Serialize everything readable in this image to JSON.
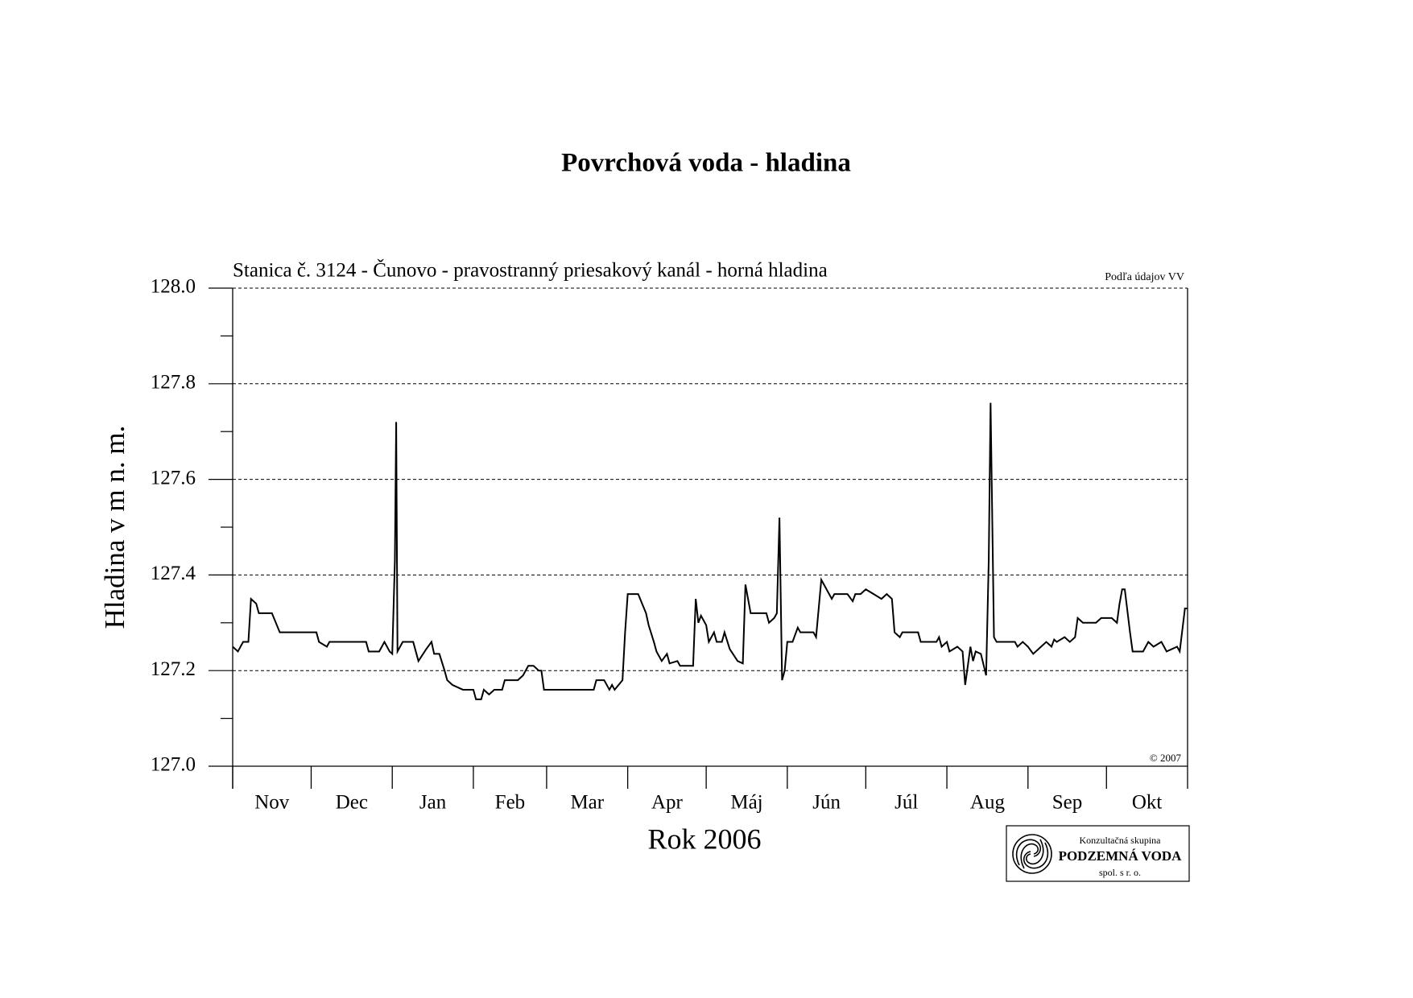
{
  "chart_data": {
    "type": "line",
    "title": "Povrchová voda - hladina",
    "subtitle": "Stanica č. 3124 - Čunovo - pravostranný priesakový kanál - horná hladina",
    "source_note": "Podľa údajov VV",
    "copyright": "© 2007",
    "x_label": "Rok 2006",
    "y_label": "Hladina v m n. m.",
    "categories": [
      "Nov",
      "Dec",
      "Jan",
      "Feb",
      "Mar",
      "Apr",
      "Máj",
      "Jún",
      "Júl",
      "Aug",
      "Sep",
      "Okt"
    ],
    "xlim": [
      0,
      365
    ],
    "xticks": [
      0,
      30,
      61,
      92,
      120,
      151,
      181,
      212,
      242,
      273,
      304,
      334,
      365
    ],
    "ylim": [
      127.0,
      128.0
    ],
    "yticks": [
      {
        "value": 127.0,
        "label": "127.0"
      },
      127.2,
      127.4,
      127.6,
      127.8,
      {
        "value": 128.0,
        "label": "128.0"
      }
    ],
    "yminor_ticks": [
      127.1,
      127.3,
      127.5,
      127.7,
      127.9
    ],
    "grid": true,
    "series": [
      {
        "name": "Hladina",
        "color": "#000000",
        "x": [
          0,
          2,
          4,
          6,
          7,
          9,
          10,
          15,
          18,
          32,
          33,
          36,
          37,
          51,
          52,
          56,
          58,
          60,
          61,
          62,
          62.5,
          63,
          65,
          69,
          71,
          74,
          76,
          77,
          79,
          81,
          82,
          84,
          88,
          92,
          93,
          95,
          96,
          98,
          100,
          103,
          104,
          109,
          111,
          113,
          115,
          117,
          118,
          119,
          138,
          139,
          142,
          144,
          145,
          146,
          149,
          150,
          151,
          155,
          158,
          159,
          161,
          162,
          164,
          166,
          167,
          170,
          171,
          176,
          177,
          178,
          179,
          181,
          182,
          184,
          185,
          187,
          188,
          190,
          193,
          195,
          196,
          198,
          204,
          205,
          207,
          208,
          209,
          210,
          211,
          212,
          214,
          216,
          217,
          222,
          223,
          225,
          226,
          229,
          230,
          235,
          237,
          238,
          240,
          242,
          245,
          248,
          250,
          252,
          253,
          255,
          256,
          262,
          263,
          269,
          270,
          271,
          273,
          274,
          277,
          279,
          280,
          282,
          283,
          284,
          286,
          288,
          289,
          289.7,
          291,
          292,
          299,
          300,
          302,
          304,
          306,
          307,
          309,
          311,
          313,
          314,
          315,
          318,
          320,
          322,
          323,
          325,
          330,
          332,
          336,
          338,
          339,
          340,
          341,
          343,
          344,
          348,
          350,
          352,
          355,
          357,
          361,
          362,
          364,
          365
        ],
        "values": [
          127.25,
          127.24,
          127.26,
          127.26,
          127.35,
          127.34,
          127.32,
          127.32,
          127.28,
          127.28,
          127.26,
          127.25,
          127.26,
          127.26,
          127.24,
          127.24,
          127.26,
          127.24,
          127.235,
          127.43,
          127.72,
          127.24,
          127.26,
          127.26,
          127.22,
          127.245,
          127.26,
          127.235,
          127.235,
          127.2,
          127.18,
          127.17,
          127.16,
          127.16,
          127.14,
          127.14,
          127.16,
          127.15,
          127.16,
          127.16,
          127.18,
          127.18,
          127.19,
          127.21,
          127.21,
          127.2,
          127.2,
          127.16,
          127.16,
          127.18,
          127.18,
          127.16,
          127.17,
          127.16,
          127.18,
          127.28,
          127.36,
          127.36,
          127.32,
          127.295,
          127.26,
          127.24,
          127.22,
          127.235,
          127.215,
          127.22,
          127.21,
          127.21,
          127.35,
          127.3,
          127.315,
          127.295,
          127.26,
          127.28,
          127.26,
          127.26,
          127.28,
          127.245,
          127.22,
          127.215,
          127.38,
          127.32,
          127.32,
          127.3,
          127.31,
          127.32,
          127.52,
          127.18,
          127.2,
          127.26,
          127.26,
          127.29,
          127.28,
          127.28,
          127.27,
          127.39,
          127.38,
          127.35,
          127.36,
          127.36,
          127.345,
          127.36,
          127.36,
          127.37,
          127.36,
          127.35,
          127.36,
          127.35,
          127.28,
          127.27,
          127.28,
          127.28,
          127.26,
          127.26,
          127.27,
          127.25,
          127.26,
          127.24,
          127.25,
          127.24,
          127.17,
          127.25,
          127.22,
          127.24,
          127.235,
          127.19,
          127.43,
          127.76,
          127.27,
          127.26,
          127.26,
          127.25,
          127.26,
          127.25,
          127.235,
          127.24,
          127.25,
          127.26,
          127.25,
          127.265,
          127.26,
          127.27,
          127.26,
          127.27,
          127.31,
          127.3,
          127.3,
          127.31,
          127.31,
          127.3,
          127.34,
          127.37,
          127.37,
          127.28,
          127.24,
          127.24,
          127.26,
          127.25,
          127.26,
          127.24,
          127.25,
          127.24,
          127.33,
          127.33
        ]
      }
    ]
  },
  "logo": {
    "line1": "Konzultačná skupina",
    "line2": "PODZEMNÁ VODA",
    "line3": "spol. s r. o."
  }
}
